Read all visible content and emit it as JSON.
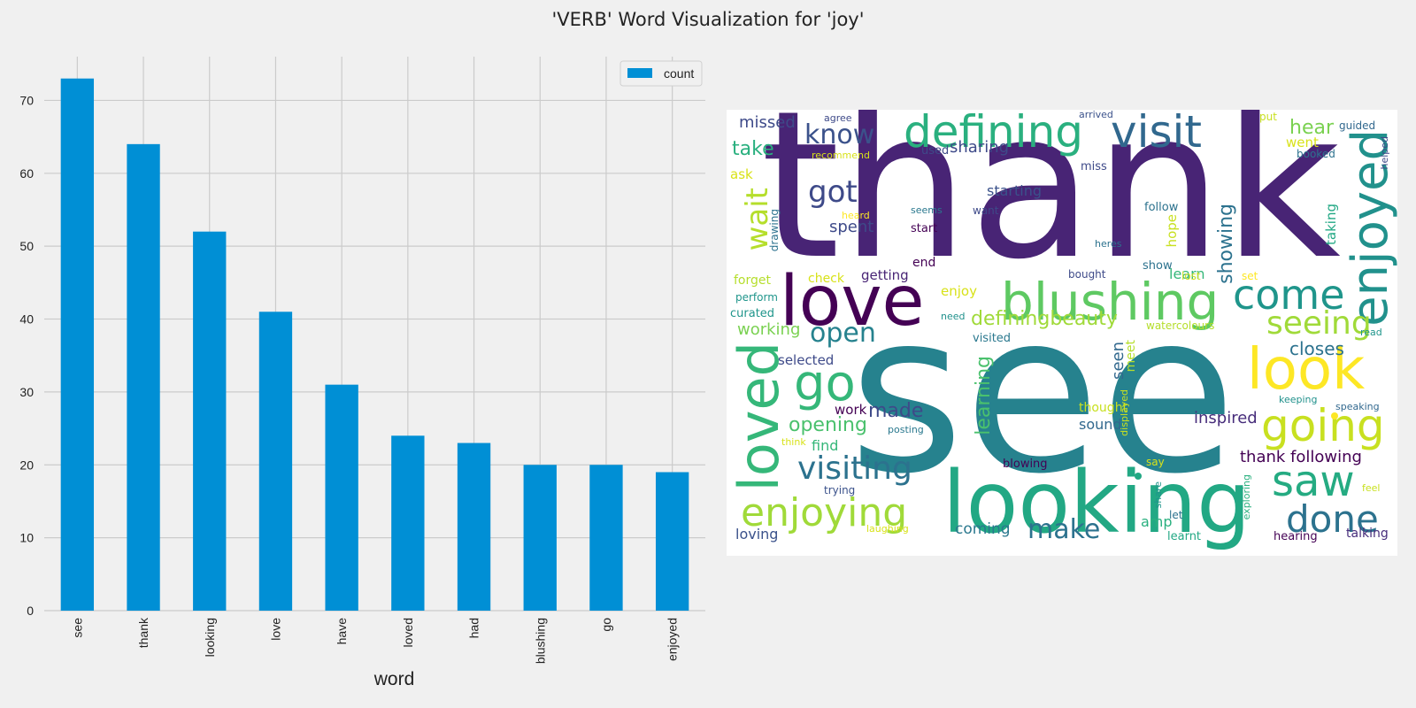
{
  "figure": {
    "title": "'VERB' Word Visualization for 'joy'"
  },
  "chart_data": [
    {
      "type": "bar",
      "categories": [
        "see",
        "thank",
        "looking",
        "love",
        "have",
        "loved",
        "had",
        "blushing",
        "go",
        "enjoyed"
      ],
      "series": [
        {
          "name": "count",
          "values": [
            73,
            64,
            52,
            41,
            31,
            24,
            23,
            20,
            20,
            19
          ],
          "color": "#008fd5"
        }
      ],
      "title": "",
      "xlabel": "word",
      "ylabel": "",
      "ylim": [
        0,
        76
      ],
      "yticks": [
        0,
        10,
        20,
        30,
        40,
        50,
        60,
        70
      ],
      "grid": true,
      "legend": "top-right",
      "background": "#f0f0f0",
      "grid_color": "#cbcbcb"
    }
  ],
  "wordcloud": {
    "background": "#ffffff",
    "words": [
      {
        "text": "thank",
        "color": "#482475"
      },
      {
        "text": "see",
        "color": "#26828e"
      },
      {
        "text": "looking",
        "color": "#22a884"
      },
      {
        "text": "love",
        "color": "#440154"
      },
      {
        "text": "blushing",
        "color": "#5ec962"
      },
      {
        "text": "defining",
        "color": "#2ab07f"
      },
      {
        "text": "visit",
        "color": "#31688e"
      },
      {
        "text": "enjoyed",
        "color": "#21918c"
      },
      {
        "text": "loved",
        "color": "#35b779"
      },
      {
        "text": "go",
        "color": "#35b779"
      },
      {
        "text": "look",
        "color": "#fde725"
      },
      {
        "text": "enjoying",
        "color": "#a0da39"
      },
      {
        "text": "going",
        "color": "#c8e020"
      },
      {
        "text": "come",
        "color": "#1f958b"
      },
      {
        "text": "saw",
        "color": "#25ab82"
      },
      {
        "text": "done",
        "color": "#2c728e"
      },
      {
        "text": "seeing",
        "color": "#a0da39"
      },
      {
        "text": "visiting",
        "color": "#2c728e"
      },
      {
        "text": "know",
        "color": "#3b528b"
      },
      {
        "text": "got",
        "color": "#3e4a89"
      },
      {
        "text": "wait",
        "color": "#b5de2b"
      },
      {
        "text": "open",
        "color": "#26828e"
      },
      {
        "text": "make",
        "color": "#2c728e"
      },
      {
        "text": "made",
        "color": "#3e4a89"
      },
      {
        "text": "learning",
        "color": "#4ac16d"
      },
      {
        "text": "opening",
        "color": "#4ac16d"
      },
      {
        "text": "definingbeauty",
        "color": "#a0da39"
      },
      {
        "text": "take",
        "color": "#2ab07f"
      },
      {
        "text": "hear",
        "color": "#7ad151"
      },
      {
        "text": "showing",
        "color": "#2c728e"
      },
      {
        "text": "missed",
        "color": "#3e4a89"
      },
      {
        "text": "sharing",
        "color": "#3e4a89"
      },
      {
        "text": "starting",
        "color": "#3b528b"
      },
      {
        "text": "spent",
        "color": "#3e4a89"
      },
      {
        "text": "closes",
        "color": "#2c728e"
      },
      {
        "text": "inspired",
        "color": "#472d7b"
      },
      {
        "text": "thank following",
        "color": "#440154"
      },
      {
        "text": "seen",
        "color": "#31688e"
      },
      {
        "text": "working",
        "color": "#7ad151"
      },
      {
        "text": "find",
        "color": "#35b779"
      },
      {
        "text": "sound",
        "color": "#31688e"
      },
      {
        "text": "coming",
        "color": "#2a788e"
      },
      {
        "text": "loving",
        "color": "#3b528b"
      },
      {
        "text": "amp",
        "color": "#2ab07f"
      },
      {
        "text": "talking",
        "color": "#472d7b"
      },
      {
        "text": "learn",
        "color": "#35b779"
      },
      {
        "text": "went",
        "color": "#d8e219"
      },
      {
        "text": "taking",
        "color": "#22a884"
      },
      {
        "text": "hope",
        "color": "#c8e020"
      },
      {
        "text": "work",
        "color": "#440154"
      },
      {
        "text": "enjoy",
        "color": "#d8e219"
      },
      {
        "text": "getting",
        "color": "#482475"
      },
      {
        "text": "selected",
        "color": "#3e4a89"
      },
      {
        "text": "thought",
        "color": "#c8e020"
      },
      {
        "text": "meet",
        "color": "#b5de2b"
      },
      {
        "text": "ask",
        "color": "#d8e219"
      },
      {
        "text": "drawing",
        "color": "#2c728e"
      },
      {
        "text": "forget",
        "color": "#b5de2b"
      },
      {
        "text": "perform",
        "color": "#1f958b"
      },
      {
        "text": "curated",
        "color": "#1f958b"
      },
      {
        "text": "check",
        "color": "#d8e219"
      },
      {
        "text": "end",
        "color": "#440154"
      },
      {
        "text": "need",
        "color": "#21918c"
      },
      {
        "text": "visited",
        "color": "#2a788e"
      },
      {
        "text": "show",
        "color": "#2c728e"
      },
      {
        "text": "lost",
        "color": "#c8e020"
      },
      {
        "text": "set",
        "color": "#fde725"
      },
      {
        "text": "bought",
        "color": "#3e4a89"
      },
      {
        "text": "watercolours",
        "color": "#b5de2b"
      },
      {
        "text": "read",
        "color": "#1f958b"
      },
      {
        "text": "keeping",
        "color": "#21918c"
      },
      {
        "text": "speaking",
        "color": "#31688e"
      },
      {
        "text": "say",
        "color": "#d8e219"
      },
      {
        "text": "feel",
        "color": "#c8e020"
      },
      {
        "text": "let",
        "color": "#2c728e"
      },
      {
        "text": "hearing",
        "color": "#440154"
      },
      {
        "text": "learnt",
        "color": "#22a884"
      },
      {
        "text": "share",
        "color": "#1f958b"
      },
      {
        "text": "exploring",
        "color": "#2ab07f"
      },
      {
        "text": "blowing",
        "color": "#440154"
      },
      {
        "text": "trying",
        "color": "#3b528b"
      },
      {
        "text": "laughing",
        "color": "#d8e219"
      },
      {
        "text": "think",
        "color": "#d8e219"
      },
      {
        "text": "posting",
        "color": "#2a788e"
      },
      {
        "text": "displayed",
        "color": "#c8e020"
      },
      {
        "text": "agree",
        "color": "#3e4a89"
      },
      {
        "text": "arrived",
        "color": "#3b528b"
      },
      {
        "text": "put",
        "color": "#c8e020"
      },
      {
        "text": "guided",
        "color": "#31688e"
      },
      {
        "text": "booked",
        "color": "#2c728e"
      },
      {
        "text": "helped",
        "color": "#3e4a89"
      },
      {
        "text": "recommend",
        "color": "#d8e219"
      },
      {
        "text": "used",
        "color": "#3e4a89"
      },
      {
        "text": "miss",
        "color": "#3e4a89"
      },
      {
        "text": "heard",
        "color": "#fde725"
      },
      {
        "text": "seems",
        "color": "#2a788e"
      },
      {
        "text": "want",
        "color": "#3e4a89"
      },
      {
        "text": "start",
        "color": "#440154"
      },
      {
        "text": "follow",
        "color": "#2c728e"
      },
      {
        "text": "heres",
        "color": "#2c728e"
      }
    ]
  }
}
